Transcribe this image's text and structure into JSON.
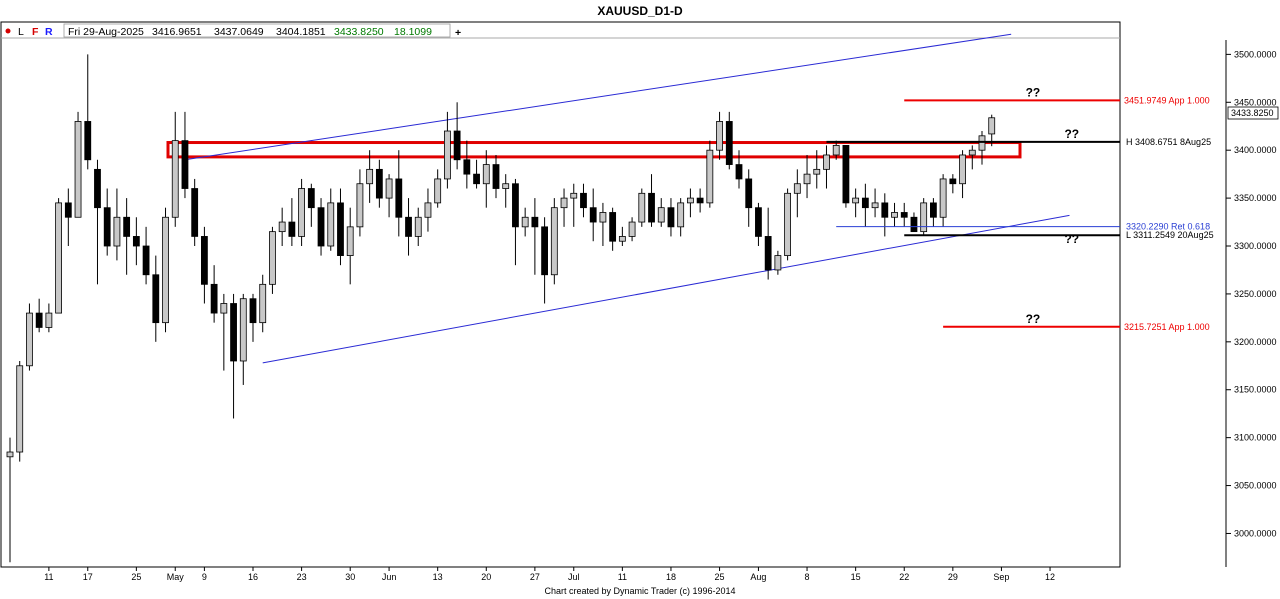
{
  "header": {
    "title": "XAUUSD_D1-D",
    "toolbar": {
      "dot_color": "#d40000",
      "btn_l": "L",
      "btn_f": "F",
      "btn_r": "R",
      "date": "Fri 29-Aug-2025",
      "open": "3416.9651",
      "high": "3437.0649",
      "low": "3404.1851",
      "close": "3433.8250",
      "change": "18.1099",
      "plus": "+"
    }
  },
  "footer": {
    "credit": "Chart created by Dynamic Trader  (c)  1996-2014"
  },
  "chart_data": {
    "type": "candlestick",
    "title": "XAUUSD_D1-D",
    "ylim": [
      2965,
      3515
    ],
    "y_ticks": [
      "3500.0000",
      "3450.0000",
      "3400.0000",
      "3350.0000",
      "3300.0000",
      "3250.0000",
      "3200.0000",
      "3150.0000",
      "3100.0000",
      "3050.0000",
      "3000.0000"
    ],
    "x_ticks": [
      {
        "label": "11",
        "t": 4
      },
      {
        "label": "17",
        "t": 8
      },
      {
        "label": "25",
        "t": 13
      },
      {
        "label": "May",
        "t": 17
      },
      {
        "label": "9",
        "t": 20
      },
      {
        "label": "16",
        "t": 25
      },
      {
        "label": "23",
        "t": 30
      },
      {
        "label": "30",
        "t": 35
      },
      {
        "label": "Jun",
        "t": 39
      },
      {
        "label": "13",
        "t": 44
      },
      {
        "label": "20",
        "t": 49
      },
      {
        "label": "27",
        "t": 54
      },
      {
        "label": "Jul",
        "t": 58
      },
      {
        "label": "11",
        "t": 63
      },
      {
        "label": "18",
        "t": 68
      },
      {
        "label": "25",
        "t": 73
      },
      {
        "label": "Aug",
        "t": 77
      },
      {
        "label": "8",
        "t": 82
      },
      {
        "label": "15",
        "t": 87
      },
      {
        "label": "22",
        "t": 92
      },
      {
        "label": "29",
        "t": 97
      },
      {
        "label": "Sep",
        "t": 102
      },
      {
        "label": "12",
        "t": 107
      }
    ],
    "last_price": "3433.8250",
    "candles": [
      [
        3080,
        3100,
        2970,
        3085
      ],
      [
        3085,
        3180,
        3075,
        3175
      ],
      [
        3175,
        3240,
        3170,
        3230
      ],
      [
        3230,
        3245,
        3210,
        3215
      ],
      [
        3215,
        3240,
        3210,
        3230
      ],
      [
        3230,
        3350,
        3230,
        3345
      ],
      [
        3345,
        3360,
        3300,
        3330
      ],
      [
        3330,
        3440,
        3330,
        3430
      ],
      [
        3430,
        3500,
        3380,
        3390
      ],
      [
        3380,
        3390,
        3260,
        3340
      ],
      [
        3340,
        3360,
        3290,
        3300
      ],
      [
        3300,
        3360,
        3285,
        3330
      ],
      [
        3330,
        3350,
        3270,
        3310
      ],
      [
        3310,
        3330,
        3280,
        3300
      ],
      [
        3300,
        3320,
        3260,
        3270
      ],
      [
        3270,
        3290,
        3200,
        3220
      ],
      [
        3220,
        3340,
        3210,
        3330
      ],
      [
        3330,
        3440,
        3320,
        3410
      ],
      [
        3410,
        3440,
        3350,
        3360
      ],
      [
        3360,
        3370,
        3300,
        3310
      ],
      [
        3310,
        3320,
        3240,
        3260
      ],
      [
        3260,
        3280,
        3220,
        3230
      ],
      [
        3230,
        3250,
        3170,
        3240
      ],
      [
        3240,
        3250,
        3120,
        3180
      ],
      [
        3180,
        3250,
        3155,
        3245
      ],
      [
        3245,
        3250,
        3200,
        3220
      ],
      [
        3220,
        3270,
        3210,
        3260
      ],
      [
        3260,
        3320,
        3250,
        3315
      ],
      [
        3315,
        3340,
        3300,
        3325
      ],
      [
        3325,
        3350,
        3300,
        3310
      ],
      [
        3310,
        3370,
        3300,
        3360
      ],
      [
        3360,
        3365,
        3320,
        3340
      ],
      [
        3340,
        3350,
        3290,
        3300
      ],
      [
        3300,
        3360,
        3295,
        3345
      ],
      [
        3345,
        3360,
        3280,
        3290
      ],
      [
        3290,
        3340,
        3260,
        3320
      ],
      [
        3320,
        3380,
        3310,
        3365
      ],
      [
        3365,
        3400,
        3345,
        3380
      ],
      [
        3380,
        3390,
        3340,
        3350
      ],
      [
        3350,
        3375,
        3330,
        3370
      ],
      [
        3370,
        3400,
        3310,
        3330
      ],
      [
        3330,
        3350,
        3290,
        3310
      ],
      [
        3310,
        3340,
        3300,
        3330
      ],
      [
        3330,
        3360,
        3315,
        3345
      ],
      [
        3345,
        3380,
        3340,
        3370
      ],
      [
        3370,
        3440,
        3360,
        3420
      ],
      [
        3420,
        3450,
        3380,
        3390
      ],
      [
        3390,
        3410,
        3360,
        3375
      ],
      [
        3375,
        3390,
        3360,
        3365
      ],
      [
        3365,
        3400,
        3340,
        3385
      ],
      [
        3385,
        3395,
        3350,
        3360
      ],
      [
        3360,
        3375,
        3340,
        3365
      ],
      [
        3365,
        3370,
        3280,
        3320
      ],
      [
        3320,
        3340,
        3310,
        3330
      ],
      [
        3330,
        3350,
        3270,
        3320
      ],
      [
        3320,
        3330,
        3240,
        3270
      ],
      [
        3270,
        3350,
        3260,
        3340
      ],
      [
        3340,
        3360,
        3320,
        3350
      ],
      [
        3350,
        3365,
        3320,
        3355
      ],
      [
        3355,
        3365,
        3330,
        3340
      ],
      [
        3340,
        3360,
        3305,
        3325
      ],
      [
        3325,
        3345,
        3300,
        3335
      ],
      [
        3335,
        3340,
        3295,
        3305
      ],
      [
        3305,
        3320,
        3300,
        3310
      ],
      [
        3310,
        3330,
        3305,
        3325
      ],
      [
        3325,
        3360,
        3320,
        3355
      ],
      [
        3355,
        3375,
        3320,
        3325
      ],
      [
        3325,
        3350,
        3320,
        3340
      ],
      [
        3340,
        3350,
        3310,
        3320
      ],
      [
        3320,
        3350,
        3310,
        3345
      ],
      [
        3345,
        3360,
        3330,
        3350
      ],
      [
        3350,
        3360,
        3335,
        3345
      ],
      [
        3345,
        3410,
        3340,
        3400
      ],
      [
        3400,
        3440,
        3390,
        3430
      ],
      [
        3430,
        3440,
        3380,
        3385
      ],
      [
        3385,
        3400,
        3360,
        3370
      ],
      [
        3370,
        3380,
        3320,
        3340
      ],
      [
        3340,
        3345,
        3300,
        3310
      ],
      [
        3310,
        3340,
        3265,
        3275
      ],
      [
        3275,
        3295,
        3270,
        3290
      ],
      [
        3290,
        3360,
        3285,
        3355
      ],
      [
        3355,
        3380,
        3330,
        3365
      ],
      [
        3365,
        3395,
        3350,
        3375
      ],
      [
        3375,
        3400,
        3360,
        3380
      ],
      [
        3380,
        3405,
        3360,
        3395
      ],
      [
        3395,
        3410,
        3390,
        3405
      ],
      [
        3405,
        3405,
        3340,
        3345
      ],
      [
        3345,
        3360,
        3330,
        3350
      ],
      [
        3350,
        3365,
        3320,
        3340
      ],
      [
        3340,
        3360,
        3330,
        3345
      ],
      [
        3345,
        3355,
        3310,
        3330
      ],
      [
        3330,
        3345,
        3320,
        3335
      ],
      [
        3335,
        3345,
        3320,
        3330
      ],
      [
        3330,
        3335,
        3315,
        3315
      ],
      [
        3315,
        3350,
        3311,
        3345
      ],
      [
        3345,
        3350,
        3320,
        3330
      ],
      [
        3330,
        3375,
        3320,
        3370
      ],
      [
        3370,
        3375,
        3355,
        3365
      ],
      [
        3365,
        3400,
        3350,
        3395
      ],
      [
        3395,
        3405,
        3380,
        3400
      ],
      [
        3400,
        3420,
        3385,
        3415
      ],
      [
        3416.9651,
        3437.0649,
        3404.1851,
        3433.825
      ]
    ],
    "red_zone": {
      "y_low": 3393,
      "y_high": 3408
    },
    "channel": {
      "upper": [
        [
          18,
          3390
        ],
        [
          103,
          3521
        ]
      ],
      "lower": [
        [
          26,
          3178
        ],
        [
          109,
          3332
        ]
      ]
    },
    "levels": [
      {
        "label": "3451.9749 App 1.000",
        "color": "#ee0000",
        "value": 3451.9749,
        "t0": 92,
        "t1": 105,
        "qq": "??"
      },
      {
        "label": "H 3408.6751 8Aug25",
        "color": "#000000",
        "value": 3408.6751,
        "t0": 84,
        "t1": 109,
        "qq": "??"
      },
      {
        "label": "3320.2290 Ret 0.618",
        "color": "#2a3fd4",
        "value": 3320.229,
        "t0": 85,
        "t1": 109,
        "qq": ""
      },
      {
        "label": "L 3311.2549 20Aug25",
        "color": "#000000",
        "value": 3311.2549,
        "t0": 92,
        "t1": 109,
        "qq": "??"
      },
      {
        "label": "3215.7251 App 1.000",
        "color": "#ee0000",
        "value": 3215.7251,
        "t0": 96,
        "t1": 105,
        "qq": "??"
      }
    ]
  }
}
